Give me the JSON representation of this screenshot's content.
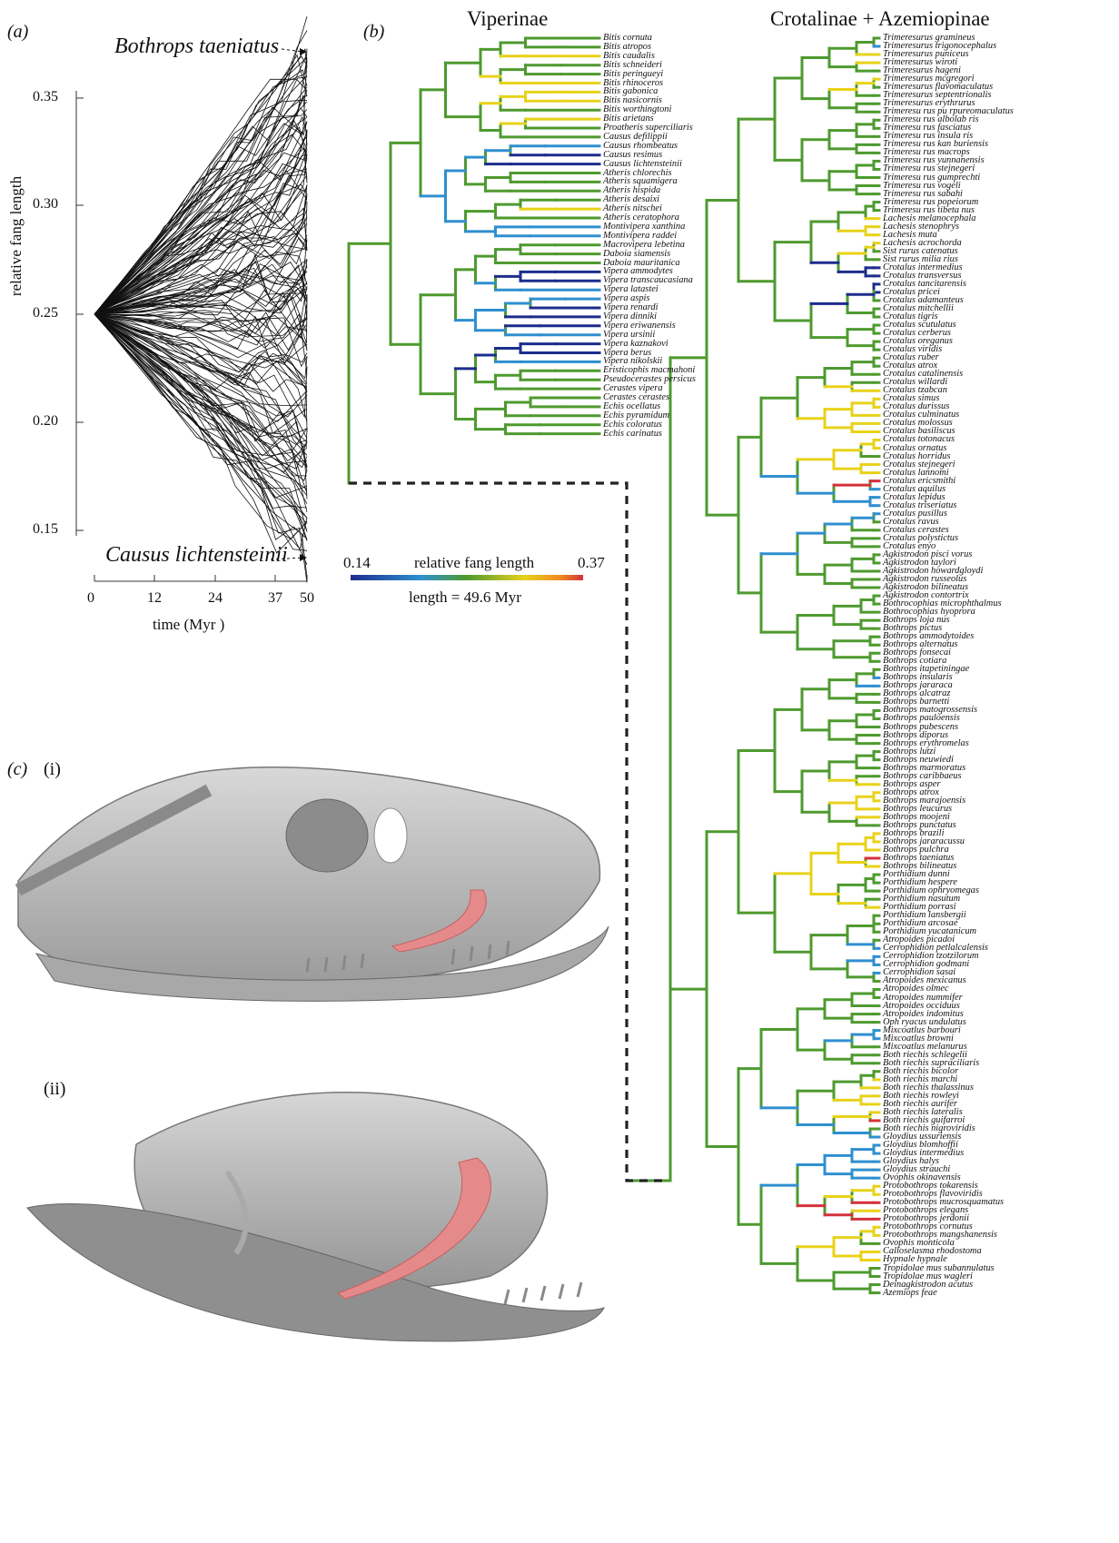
{
  "panels": {
    "a": {
      "label": "(a)",
      "top_species": "Bothrops taeniatus",
      "bottom_species": "Causus lichtensteinii",
      "ylabel": "relative fang length",
      "xlabel": "time (Myr )",
      "yticks": [
        "0.35",
        "0.30",
        "0.25",
        "0.20",
        "0.15"
      ],
      "xticks": [
        "0",
        "12",
        "24",
        "37",
        "50"
      ]
    },
    "b": {
      "label": "(b)",
      "group_left": "Viperinae",
      "group_right": "Crotalinae + Azemiopinae",
      "legend": {
        "min": "0.14",
        "max": "0.37",
        "title": "relative fang length",
        "scale": "length = 49.6 Myr"
      }
    },
    "c": {
      "label": "(c)",
      "sub1": "(i)",
      "sub2": "(ii)"
    }
  },
  "colors": {
    "green": "#4e9a2f",
    "yellow": "#e8d21a",
    "blue": "#2f8fd0",
    "navy": "#1d2d8c",
    "red": "#d4323a",
    "fang": "#e58a8a",
    "skull": "#b9b9b9"
  },
  "viperinae_tips": [
    "Bitis cornuta",
    "Bitis atropos",
    "Bitis caudalis",
    "Bitis schneideri",
    "Bitis peringueyi",
    "Bitis rhinoceros",
    "Bitis gabonica",
    "Bitis nasicornis",
    "Bitis worthingtoni",
    "Bitis arietans",
    "Proatheris superciliaris",
    "Causus defilippii",
    "Causus rhombeatus",
    "Causus resimus",
    "Causus lichtensteinii",
    "Atheris chlorechis",
    "Atheris squamigera",
    "Atheris hispida",
    "Atheris desaixi",
    "Atheris nitschei",
    "Atheris ceratophora",
    "Montivipera xanthina",
    "Montivipera raddei",
    "Macrovipera lebetina",
    "Daboia siamensis",
    "Daboia mauritanica",
    "Vipera ammodytes",
    "Vipera transcaucasiana",
    "Vipera latastei",
    "Vipera aspis",
    "Vipera renardi",
    "Vipera dinniki",
    "Vipera eriwanensis",
    "Vipera ursinii",
    "Vipera kaznakovi",
    "Vipera berus",
    "Vipera nikolskii",
    "Eristicophis macmahoni",
    "Pseudocerastes persicus",
    "Cerastes vipera",
    "Cerastes cerastes",
    "Echis ocellatus",
    "Echis pyramidum",
    "Echis coloratus",
    "Echis carinatus"
  ],
  "viperinae_tip_colors": [
    "green",
    "green",
    "yellow",
    "green",
    "green",
    "yellow",
    "yellow",
    "yellow",
    "green",
    "yellow",
    "green",
    "green",
    "blue",
    "navy",
    "navy",
    "green",
    "green",
    "green",
    "green",
    "yellow",
    "green",
    "blue",
    "blue",
    "green",
    "green",
    "green",
    "navy",
    "navy",
    "blue",
    "blue",
    "navy",
    "navy",
    "navy",
    "blue",
    "navy",
    "navy",
    "blue",
    "green",
    "green",
    "green",
    "green",
    "green",
    "green",
    "green",
    "green"
  ],
  "crotalinae_tips": [
    "Trimeresurus gramineus",
    "Trimeresurus trigonocephalus",
    "Trimeresurus puniceus",
    "Trimeresurus wiroti",
    "Trimeresurus hageni",
    "Trimeresurus mcgregori",
    "Trimeresurus flavomaculatus",
    "Trimeresurus septentrionalis",
    "Trimeresurus erythrurus",
    "Trimeresu rus pu rpureomaculatus",
    "Trimeresu rus albolab ris",
    "Trimeresu rus fasciatus",
    "Trimeresu rus insula ris",
    "Trimeresu rus kan buriensis",
    "Trimeresu rus macrops",
    "Trimeresu rus yunnanensis",
    "Trimeresu rus stejnegeri",
    "Trimeresu rus gumprechti",
    "Trimeresu rus vogeli",
    "Trimeresu rus sabahi",
    "Trimeresu rus popeiorum",
    "Trimeresu rus tibeta nus",
    "Lachesis melanocephala",
    "Lachesis stenophrys",
    "Lachesis muta",
    "Lachesis acrochorda",
    "Sist rurus catenatus",
    "Sist rurus milia rius",
    "Crotalus intermedius",
    "Crotalus transversus",
    "Crotalus tancitarensis",
    "Crotalus pricei",
    "Crotalus adamanteus",
    "Crotalus mitchellii",
    "Crotalus tigris",
    "Crotalus scutulatus",
    "Crotalus cerberus",
    "Crotalus oreganus",
    "Crotalus viridis",
    "Crotalus  ruber",
    "Crotalus atrox",
    "Crotalus catalinensis",
    "Crotalus willardi",
    "Crotalus tzabcan",
    "Crotalus simus",
    "Crotalus durissus",
    "Crotalus culminatus",
    "Crotalus molossus",
    "Crotalus basiliscus",
    "Crotalus totonacus",
    "Crotalus ornatus",
    "Crotalus horridus",
    "Crotalus stejnegeri",
    "Crotalus lannomi",
    "Crotalus ericsmithi",
    "Crotalus aquilus",
    "Crotalus lepidus",
    "Crotalus triseriatus",
    "Crotalus pusillus",
    "Crotalus  ravus",
    "Crotalus cerastes",
    "Crotalus polystictus",
    "Crotalus enyo",
    "Agkistrodon pisci vorus",
    "Agkistrodon taylori",
    "Agkistrodon howardgloydi",
    "Agkistrodon russeolus",
    "Agkistrodon bilineatus",
    "Agkistrodon contortrix",
    "Bothrocophias microphthalmus",
    "Bothrocophias hyoprora",
    "Bothrops loja nus",
    "Bothrops pictus",
    "Bothrops ammodytoides",
    "Bothrops alternatus",
    "Bothrops fonsecai",
    "Bothrops cotiara",
    "Bothrops itapetiningae",
    "Bothrops insularis",
    "Bothrops jararaca",
    "Bothrops alcatraz",
    "Bothrops barnetti",
    "Bothrops matogrossensis",
    "Bothrops pauloensis",
    "Bothrops pubescens",
    "Bothrops diporus",
    "Bothrops erythromelas",
    "Bothrops lutzi",
    "Bothrops neuwiedi",
    "Bothrops marmoratus",
    "Bothrops caribbaeus",
    "Bothrops asper",
    "Bothrops atrox",
    "Bothrops marajoensis",
    "Bothrops leucurus",
    "Bothrops moojeni",
    "Bothrops punctatus",
    "Bothrops brazili",
    "Bothrops jararacussu",
    "Bothrops pulchra",
    "Bothrops taeniatus",
    "Bothrops bilineatus",
    "Porthidium dunni",
    "Porthidium hespere",
    "Porthidium ophryomegas",
    "Porthidium nasutum",
    "Porthidium porrasi",
    "Porthidium lansbergii",
    "Porthidium arcosae",
    "Porthidium yucatanicum",
    "Atropoides picadoi",
    "Cerrophidion petlalcalensis",
    "Cerrophidion tzotzilorum",
    "Cerrophidion godmani",
    "Cerrophidion sasai",
    "Atropoides mexicanus",
    "Atropoides olmec",
    "Atropoides nummifer",
    "Atropoides occiduus",
    "Atropoides indomitus",
    "Oph ryacus undulatus",
    "Mixcoatlus barbouri",
    "Mixcoatlus browni",
    "Mixcoatlus melanurus",
    "Both riechis schlegelii",
    "Both riechis supraciliaris",
    "Both riechis bicolor",
    "Both riechis marchi",
    "Both riechis thalassinus",
    "Both riechis rowleyi",
    "Both riechis aurifer",
    "Both riechis lateralis",
    "Both riechis guifarroi",
    "Both riechis nigroviridis",
    "Gloydius ussuriensis",
    "Gloydius  blomhoffii",
    "Gloydius intermedius",
    "Gloydius halys",
    "Gloydius strauchi",
    "Ovophis okinavensis",
    "Protobothrops tokarensis",
    "Protobothrops flavoviridis",
    "Protobothrops mucrosquamatus",
    "Protobothrops elegans",
    "Protobothrops jerdonii",
    "Protobothrops cornutus",
    "Protobothrops mangshanensis",
    "Ovophis monticola",
    "Calloselasma rhodostoma",
    "Hypnale  hypnale",
    "Tropidolae mus subannulatus",
    "Tropidolae mus wagleri",
    "Deinagkistrodon acutus",
    "Azemiops feae"
  ]
}
